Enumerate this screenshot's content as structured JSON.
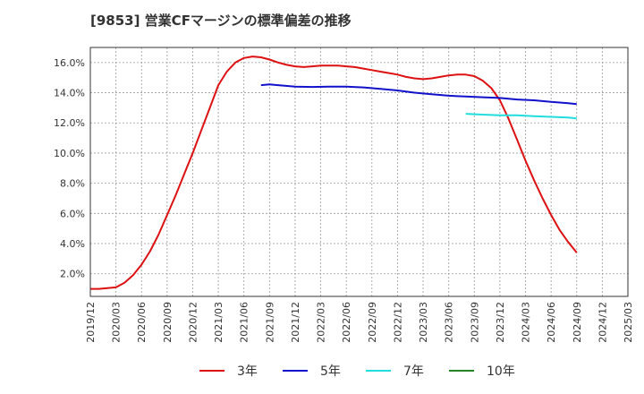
{
  "chart_data": {
    "type": "line",
    "title": "[9853]  営業CFマージンの標準偏差の推移",
    "xlabel": "",
    "ylabel": "",
    "x_start": "2019-12",
    "x_end": "2025-03",
    "x_ticks": [
      "2019/12",
      "2020/03",
      "2020/06",
      "2020/09",
      "2020/12",
      "2021/03",
      "2021/06",
      "2021/09",
      "2021/12",
      "2022/03",
      "2022/06",
      "2022/09",
      "2022/12",
      "2023/03",
      "2023/06",
      "2023/09",
      "2023/12",
      "2024/03",
      "2024/06",
      "2024/09",
      "2024/12",
      "2025/03"
    ],
    "ylim": [
      0.5,
      17.0
    ],
    "y_ticks": [
      2.0,
      4.0,
      6.0,
      8.0,
      10.0,
      12.0,
      14.0,
      16.0
    ],
    "y_tick_labels": [
      "2.0%",
      "4.0%",
      "6.0%",
      "8.0%",
      "10.0%",
      "12.0%",
      "14.0%",
      "16.0%"
    ],
    "grid": true,
    "legend_position": "bottom",
    "series": [
      {
        "name": "3年",
        "color": "#dd1111",
        "points": [
          [
            "2019-12",
            1.0
          ],
          [
            "2020-01",
            1.0
          ],
          [
            "2020-02",
            1.05
          ],
          [
            "2020-03",
            1.1
          ],
          [
            "2020-04",
            1.4
          ],
          [
            "2020-05",
            1.9
          ],
          [
            "2020-06",
            2.6
          ],
          [
            "2020-07",
            3.5
          ],
          [
            "2020-08",
            4.6
          ],
          [
            "2020-09",
            5.9
          ],
          [
            "2020-10",
            7.2
          ],
          [
            "2020-11",
            8.6
          ],
          [
            "2020-12",
            10.0
          ],
          [
            "2021-01",
            11.5
          ],
          [
            "2021-02",
            13.0
          ],
          [
            "2021-03",
            14.5
          ],
          [
            "2021-04",
            15.4
          ],
          [
            "2021-05",
            16.0
          ],
          [
            "2021-06",
            16.3
          ],
          [
            "2021-07",
            16.4
          ],
          [
            "2021-08",
            16.35
          ],
          [
            "2021-09",
            16.2
          ],
          [
            "2021-10",
            16.0
          ],
          [
            "2021-11",
            15.85
          ],
          [
            "2021-12",
            15.75
          ],
          [
            "2022-01",
            15.7
          ],
          [
            "2022-02",
            15.75
          ],
          [
            "2022-03",
            15.8
          ],
          [
            "2022-04",
            15.8
          ],
          [
            "2022-05",
            15.8
          ],
          [
            "2022-06",
            15.75
          ],
          [
            "2022-07",
            15.7
          ],
          [
            "2022-08",
            15.6
          ],
          [
            "2022-09",
            15.5
          ],
          [
            "2022-10",
            15.4
          ],
          [
            "2022-11",
            15.3
          ],
          [
            "2022-12",
            15.2
          ],
          [
            "2023-01",
            15.05
          ],
          [
            "2023-02",
            14.95
          ],
          [
            "2023-03",
            14.9
          ],
          [
            "2023-04",
            14.95
          ],
          [
            "2023-05",
            15.05
          ],
          [
            "2023-06",
            15.15
          ],
          [
            "2023-07",
            15.2
          ],
          [
            "2023-08",
            15.2
          ],
          [
            "2023-09",
            15.1
          ],
          [
            "2023-10",
            14.8
          ],
          [
            "2023-11",
            14.3
          ],
          [
            "2023-12",
            13.5
          ],
          [
            "2024-01",
            12.3
          ],
          [
            "2024-02",
            10.9
          ],
          [
            "2024-03",
            9.5
          ],
          [
            "2024-04",
            8.2
          ],
          [
            "2024-05",
            7.0
          ],
          [
            "2024-06",
            5.9
          ],
          [
            "2024-07",
            4.9
          ],
          [
            "2024-08",
            4.1
          ],
          [
            "2024-09",
            3.4
          ]
        ]
      },
      {
        "name": "5年",
        "color": "#1111cc",
        "points": [
          [
            "2021-08",
            14.5
          ],
          [
            "2021-09",
            14.55
          ],
          [
            "2021-10",
            14.5
          ],
          [
            "2021-12",
            14.4
          ],
          [
            "2022-02",
            14.38
          ],
          [
            "2022-04",
            14.4
          ],
          [
            "2022-06",
            14.4
          ],
          [
            "2022-08",
            14.35
          ],
          [
            "2022-10",
            14.25
          ],
          [
            "2022-12",
            14.15
          ],
          [
            "2023-02",
            14.0
          ],
          [
            "2023-04",
            13.9
          ],
          [
            "2023-06",
            13.8
          ],
          [
            "2023-08",
            13.75
          ],
          [
            "2023-10",
            13.7
          ],
          [
            "2023-12",
            13.65
          ],
          [
            "2024-02",
            13.55
          ],
          [
            "2024-04",
            13.5
          ],
          [
            "2024-06",
            13.4
          ],
          [
            "2024-08",
            13.3
          ],
          [
            "2024-09",
            13.25
          ]
        ]
      },
      {
        "name": "7年",
        "color": "#22dddd",
        "points": [
          [
            "2023-08",
            12.6
          ],
          [
            "2023-10",
            12.55
          ],
          [
            "2023-12",
            12.5
          ],
          [
            "2024-02",
            12.5
          ],
          [
            "2024-04",
            12.45
          ],
          [
            "2024-06",
            12.4
          ],
          [
            "2024-08",
            12.35
          ],
          [
            "2024-09",
            12.3
          ]
        ]
      },
      {
        "name": "10年",
        "color": "#228822",
        "points": []
      }
    ]
  }
}
